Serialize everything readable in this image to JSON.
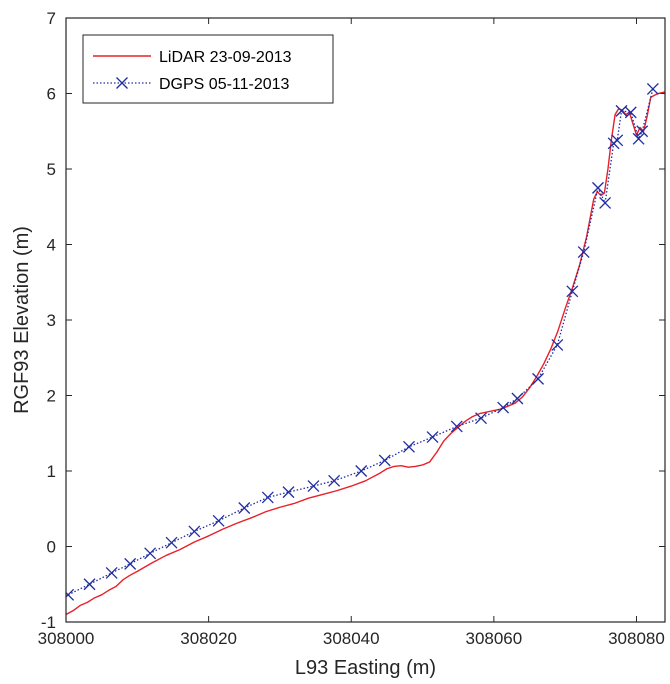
{
  "chart_data": {
    "type": "line",
    "title": "",
    "xlabel": "L93 Easting (m)",
    "ylabel": "RGF93 Elevation (m)",
    "xlim": [
      308000,
      308084
    ],
    "ylim": [
      -1,
      7
    ],
    "xticks": [
      308000,
      308020,
      308040,
      308060,
      308080
    ],
    "xtick_labels": [
      "308000",
      "308020",
      "308040",
      "308060",
      "308080"
    ],
    "yticks": [
      -1,
      0,
      1,
      2,
      3,
      4,
      5,
      6,
      7
    ],
    "ytick_labels": [
      "-1",
      "0",
      "1",
      "2",
      "3",
      "4",
      "5",
      "6",
      "7"
    ],
    "grid": false,
    "legend_position": "top-left",
    "series": [
      {
        "name": "LiDAR 23-09-2013",
        "color": "#e8202a",
        "style": "solid",
        "marker": "none",
        "x": [
          308000,
          308001,
          308002,
          308003,
          308004,
          308005,
          308006,
          308007,
          308008,
          308009,
          308010,
          308012,
          308014,
          308016,
          308018,
          308020,
          308022,
          308024,
          308026,
          308028,
          308030,
          308032,
          308034,
          308036,
          308038,
          308040,
          308042,
          308044,
          308045,
          308046,
          308047,
          308048,
          308049,
          308050,
          308051,
          308052,
          308053,
          308054,
          308055,
          308056,
          308057,
          308058,
          308059,
          308060,
          308061,
          308062,
          308063,
          308064,
          308065,
          308066,
          308067,
          308068,
          308069,
          308070,
          308071,
          308072,
          308073,
          308074,
          308074.5,
          308075,
          308075.5,
          308076,
          308076.5,
          308077,
          308077.5,
          308078,
          308078.5,
          308079,
          308079.5,
          308080,
          308080.5,
          308081,
          308081.5,
          308082,
          308083,
          308084
        ],
        "y": [
          -0.9,
          -0.85,
          -0.78,
          -0.74,
          -0.68,
          -0.64,
          -0.58,
          -0.53,
          -0.44,
          -0.38,
          -0.33,
          -0.22,
          -0.12,
          -0.04,
          0.06,
          0.14,
          0.23,
          0.31,
          0.38,
          0.46,
          0.52,
          0.57,
          0.64,
          0.69,
          0.74,
          0.8,
          0.87,
          0.97,
          1.03,
          1.06,
          1.07,
          1.05,
          1.06,
          1.08,
          1.12,
          1.25,
          1.4,
          1.5,
          1.58,
          1.66,
          1.72,
          1.76,
          1.78,
          1.8,
          1.82,
          1.86,
          1.9,
          1.98,
          2.1,
          2.25,
          2.42,
          2.62,
          2.86,
          3.15,
          3.42,
          3.72,
          4.1,
          4.6,
          4.7,
          4.65,
          4.68,
          5.0,
          5.4,
          5.72,
          5.8,
          5.78,
          5.72,
          5.75,
          5.6,
          5.45,
          5.55,
          5.5,
          5.7,
          5.95,
          6.0,
          6.02
        ]
      },
      {
        "name": "DGPS 05-11-2013",
        "color": "#1f2da0",
        "style": "dotted",
        "marker": "x",
        "x": [
          308000.3,
          308003.3,
          308006.4,
          308009.0,
          308011.8,
          308014.8,
          308018.0,
          308021.4,
          308025.0,
          308028.3,
          308031.2,
          308034.7,
          308037.6,
          308041.4,
          308044.7,
          308048.1,
          308051.4,
          308054.8,
          308058.2,
          308061.3,
          308063.3,
          308066.2,
          308068.9,
          308071.0,
          308072.6,
          308074.6,
          308075.6,
          308076.8,
          308077.3,
          308077.9,
          308079.2,
          308080.3,
          308080.8,
          308082.3
        ],
        "y": [
          -0.64,
          -0.5,
          -0.35,
          -0.23,
          -0.09,
          0.05,
          0.2,
          0.34,
          0.51,
          0.65,
          0.72,
          0.8,
          0.87,
          1.0,
          1.14,
          1.32,
          1.45,
          1.59,
          1.7,
          1.84,
          1.96,
          2.22,
          2.67,
          3.38,
          3.9,
          4.75,
          4.55,
          5.34,
          5.38,
          5.77,
          5.75,
          5.4,
          5.5,
          6.06
        ]
      }
    ]
  }
}
